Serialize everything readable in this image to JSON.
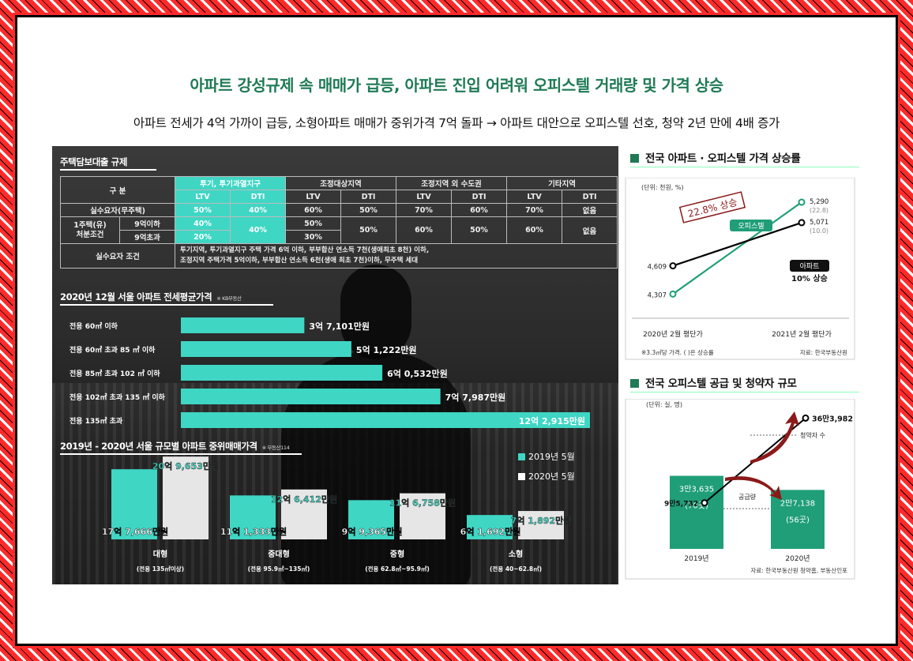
{
  "headline": "아파트 강성규제 속 매매가 급등, 아파트 진입 어려워 오피스텔 거래량 및 가격 상승",
  "subline": "아파트 전세가 4억 가까이 급등, 소형아파트 매매가 중위가격 7억 돌파 → 아파트 대안으로 오피스텔 선호, 청약 2년 만에 4배 증가",
  "colors": {
    "teal": "#3fd6c4",
    "green": "#1f9e78",
    "dark_green": "#1f7a55",
    "accent_red": "#8b1a1a"
  },
  "loan_table": {
    "title": "주택담보대출 규제",
    "col_label": "구  분",
    "groups": [
      "투기, 투기과열지구",
      "조정대상지역",
      "조정지역 외 수도권",
      "기타지역"
    ],
    "sub": [
      "LTV",
      "DTI",
      "LTV",
      "DTI",
      "LTV",
      "DTI",
      "LTV",
      "DTI"
    ],
    "row1_label": "실수요자(무주택)",
    "row1": [
      "50%",
      "40%",
      "60%",
      "50%",
      "70%",
      "60%",
      "70%",
      "없음"
    ],
    "row2_label": "1주택(유)\n처분조건",
    "row2a_sub": "9억이하",
    "row2b_sub": "9억초과",
    "row2a_ltv1": "40%",
    "row2b_ltv1": "20%",
    "row2_dti1": "40%",
    "row2a_ltv2": "50%",
    "row2b_ltv2": "30%",
    "row2_rest": [
      "50%",
      "60%",
      "50%",
      "60%",
      "없음"
    ],
    "cond_label": "실수요자 조건",
    "cond_line1": "투기지역, 투기과열지구 주택 가격 6억 이하, 부부합산 연소득 7천(생애최초 8천) 이하,",
    "cond_line2": "조정지역 주택가격 5억이하, 부부합산 연소득 6천(생애 최초 7천)이하, 무주택 세대"
  },
  "jeonse": {
    "title": "2020년 12월 서울 아파트 전세평균가격",
    "source": "※ KB부동산",
    "items": [
      {
        "label": "전용 60㎡ 이하",
        "value": 3.7101,
        "text": "3억 7,101만원"
      },
      {
        "label": "전용 60㎡ 초과 85 ㎡ 이하",
        "value": 5.1222,
        "text": "5억 1,222만원"
      },
      {
        "label": "전용 85㎡ 초과 102 ㎡ 이하",
        "value": 6.0532,
        "text": "6억 0,532만원"
      },
      {
        "label": "전용 102㎡ 초과 135 ㎡ 이하",
        "value": 7.7987,
        "text": "7억 7,987만원"
      },
      {
        "label": "전용 135㎡ 초과",
        "value": 12.2915,
        "text": "12억 2,915만원"
      }
    ]
  },
  "trade": {
    "title": "2019년 - 2020년 서울 규모별 아파트 중위매매가격",
    "source": "※ 부동산114",
    "legend": [
      "2019년 5월",
      "2020년 5월"
    ],
    "categories": [
      {
        "name": "대형",
        "sub": "(전용 135㎡이상)",
        "v2019": 17.7666,
        "t2019": "17억 7,666만원",
        "v2020": 20.9653,
        "t2020": "20억 9,653만원"
      },
      {
        "name": "중대형",
        "sub": "(전용 95.9㎡~135㎡)",
        "v2019": 11.1333,
        "t2019": "11억 1,333만원",
        "v2020": 12.6412,
        "t2020": "12억 6,412만원"
      },
      {
        "name": "중형",
        "sub": "(전용 62.8㎡~95.9㎡)",
        "v2019": 9.9365,
        "t2019": "9억 9,365만원",
        "v2020": 11.6758,
        "t2020": "11억 6,758만원"
      },
      {
        "name": "소형",
        "sub": "(전용 40~62.8㎡)",
        "v2019": 6.1692,
        "t2019": "6억 1,692만원",
        "v2020": 7.1892,
        "t2020": "7억 1,892만원"
      }
    ]
  },
  "chart_data": [
    {
      "type": "line",
      "title": "전국 아파트 · 오피스텔 가격 상승률",
      "unit": "(단위: 천원, %)",
      "x": [
        "2020년 2월 평단가",
        "2021년 2월 평단가"
      ],
      "series": [
        {
          "name": "오피스텔",
          "values": [
            4307,
            5290
          ],
          "start_label": "4,307",
          "end_label": "5,290",
          "end_note": "(22.8)",
          "callout": "22.8% 상승"
        },
        {
          "name": "아파트",
          "values": [
            4609,
            5071
          ],
          "start_label": "4,609",
          "end_label": "5,071",
          "end_note": "(10.0)",
          "callout": "10% 상승"
        }
      ],
      "note": "※3.3㎡당 가격. ( )은 상승률",
      "source": "자료: 한국부동산원"
    },
    {
      "type": "bar",
      "title": "전국 오피스텔 공급 및 청약자 규모",
      "unit": "(단위: 실, 명)",
      "categories": [
        "2019년",
        "2020년"
      ],
      "supply": {
        "name": "공급량",
        "values": [
          33635,
          27138
        ],
        "labels": [
          "3만3,635",
          "2만7,138"
        ],
        "sub": [
          "(70곳)",
          "(56곳)"
        ]
      },
      "applicants": {
        "name": "청약자 수",
        "values": [
          95732,
          363982
        ],
        "labels": [
          "9만5,732",
          "36만3,982"
        ]
      },
      "source": "자료: 한국부동산원 청약홈, 부동산인포"
    }
  ]
}
